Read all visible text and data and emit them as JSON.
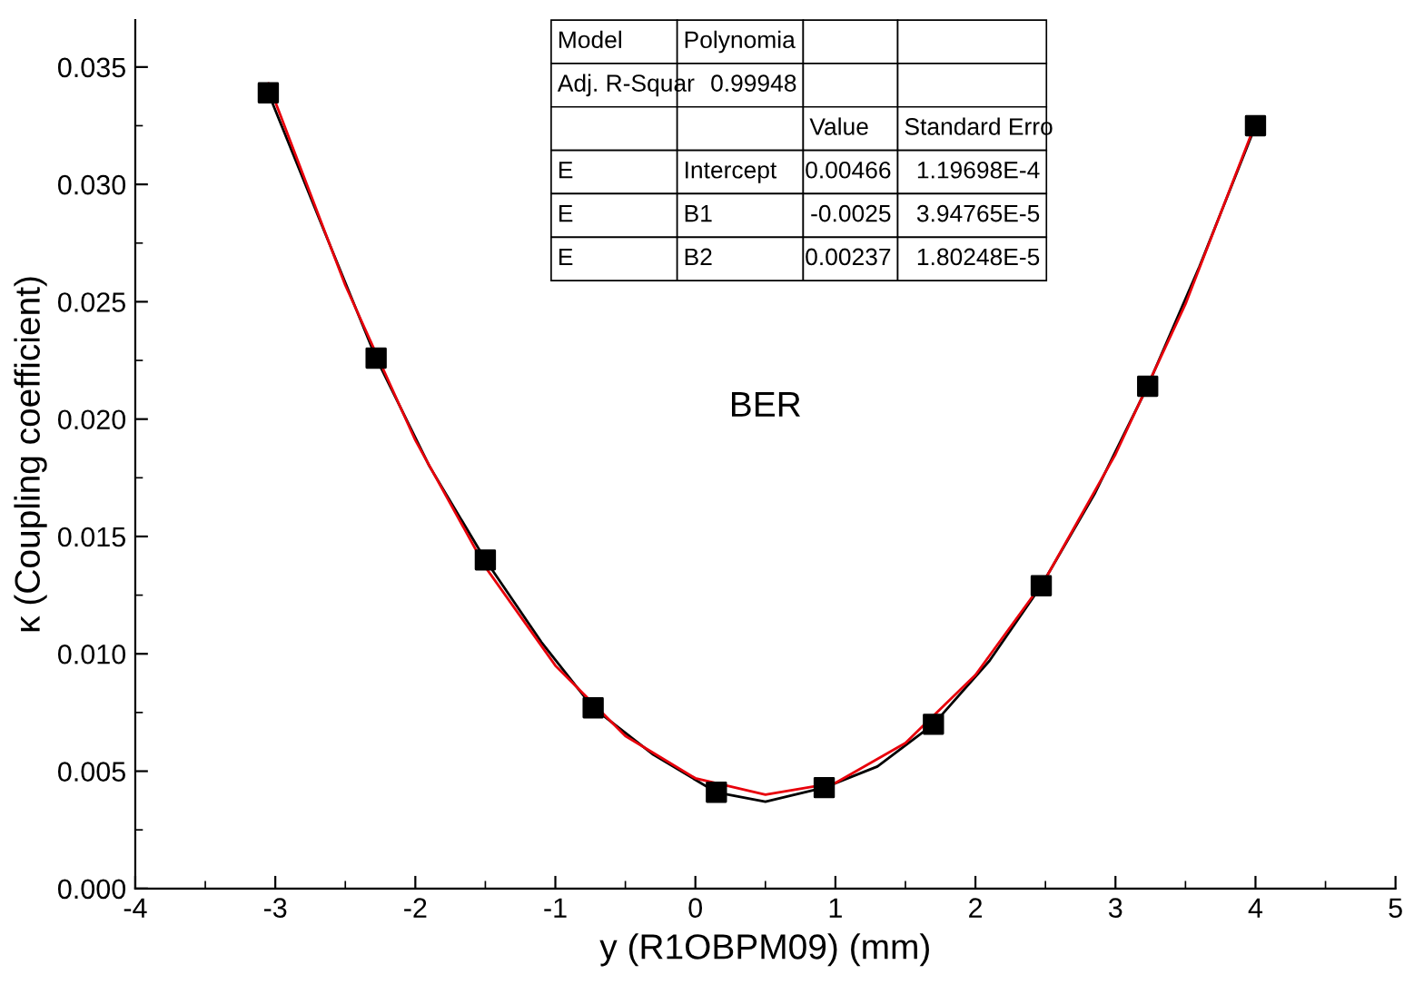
{
  "chart_data": {
    "type": "scatter",
    "xlabel": "y (R1OBPM09) (mm)",
    "ylabel": "κ (Coupling coefficient)",
    "xlim": [
      -4,
      5
    ],
    "xticks": [
      -4,
      -3,
      -2,
      -1,
      0,
      1,
      2,
      3,
      4,
      5
    ],
    "ylim": [
      0,
      0.037
    ],
    "yticks": [
      {
        "value": 0,
        "label": "0.000"
      },
      {
        "value": 0.005,
        "label": "0.005"
      },
      {
        "value": 0.01,
        "label": "0.010"
      },
      {
        "value": 0.015,
        "label": "0.015"
      },
      {
        "value": 0.02,
        "label": "0.020"
      },
      {
        "value": 0.025,
        "label": "0.025"
      },
      {
        "value": 0.03,
        "label": "0.030"
      },
      {
        "value": 0.035,
        "label": "0.035"
      }
    ],
    "grid": false,
    "legend": false,
    "series": [
      {
        "type": "line",
        "color": "#000000",
        "x": [
          -3.05,
          -2.65,
          -2.28,
          -1.9,
          -1.5,
          -1.1,
          -0.73,
          -0.3,
          0.15,
          0.5,
          0.92,
          1.3,
          1.7,
          2.1,
          2.47,
          2.85,
          3.23,
          3.6,
          4.0
        ],
        "values": [
          0.0339,
          0.028,
          0.0226,
          0.018,
          0.014,
          0.0105,
          0.0077,
          0.0057,
          0.0041,
          0.0037,
          0.0043,
          0.0052,
          0.007,
          0.0097,
          0.0129,
          0.0168,
          0.0214,
          0.0265,
          0.0325
        ]
      },
      {
        "type": "line",
        "color": "#e8000b",
        "x": [
          -3.05,
          -2.5,
          -2,
          -1.5,
          -1,
          -0.5,
          0,
          0.5,
          1,
          1.5,
          2,
          2.5,
          3,
          3.5,
          4
        ],
        "values": [
          0.0343,
          0.0257,
          0.0191,
          0.0137,
          0.0095,
          0.0065,
          0.0047,
          0.004,
          0.0045,
          0.0062,
          0.0091,
          0.0132,
          0.0185,
          0.0249,
          0.0326
        ]
      },
      {
        "marker": "square",
        "color": "#000000",
        "x": [
          -3.05,
          -2.28,
          -1.5,
          -0.73,
          0.15,
          0.92,
          1.7,
          2.47,
          3.23,
          4.0
        ],
        "values": [
          0.0339,
          0.0226,
          0.014,
          0.0077,
          0.0041,
          0.0043,
          0.007,
          0.0129,
          0.0214,
          0.0325
        ]
      }
    ],
    "annotations": [
      "BER",
      "Model",
      "Polynomia",
      "Adj. R-Squar",
      "0.99948",
      "Value",
      "Standard Erro",
      "E",
      "Intercept",
      "0.00466",
      "1.19698E-4",
      "E",
      "B1",
      "-0.0025",
      "3.94765E-5",
      "E",
      "B2",
      "0.00237",
      "1.80248E-5"
    ]
  }
}
